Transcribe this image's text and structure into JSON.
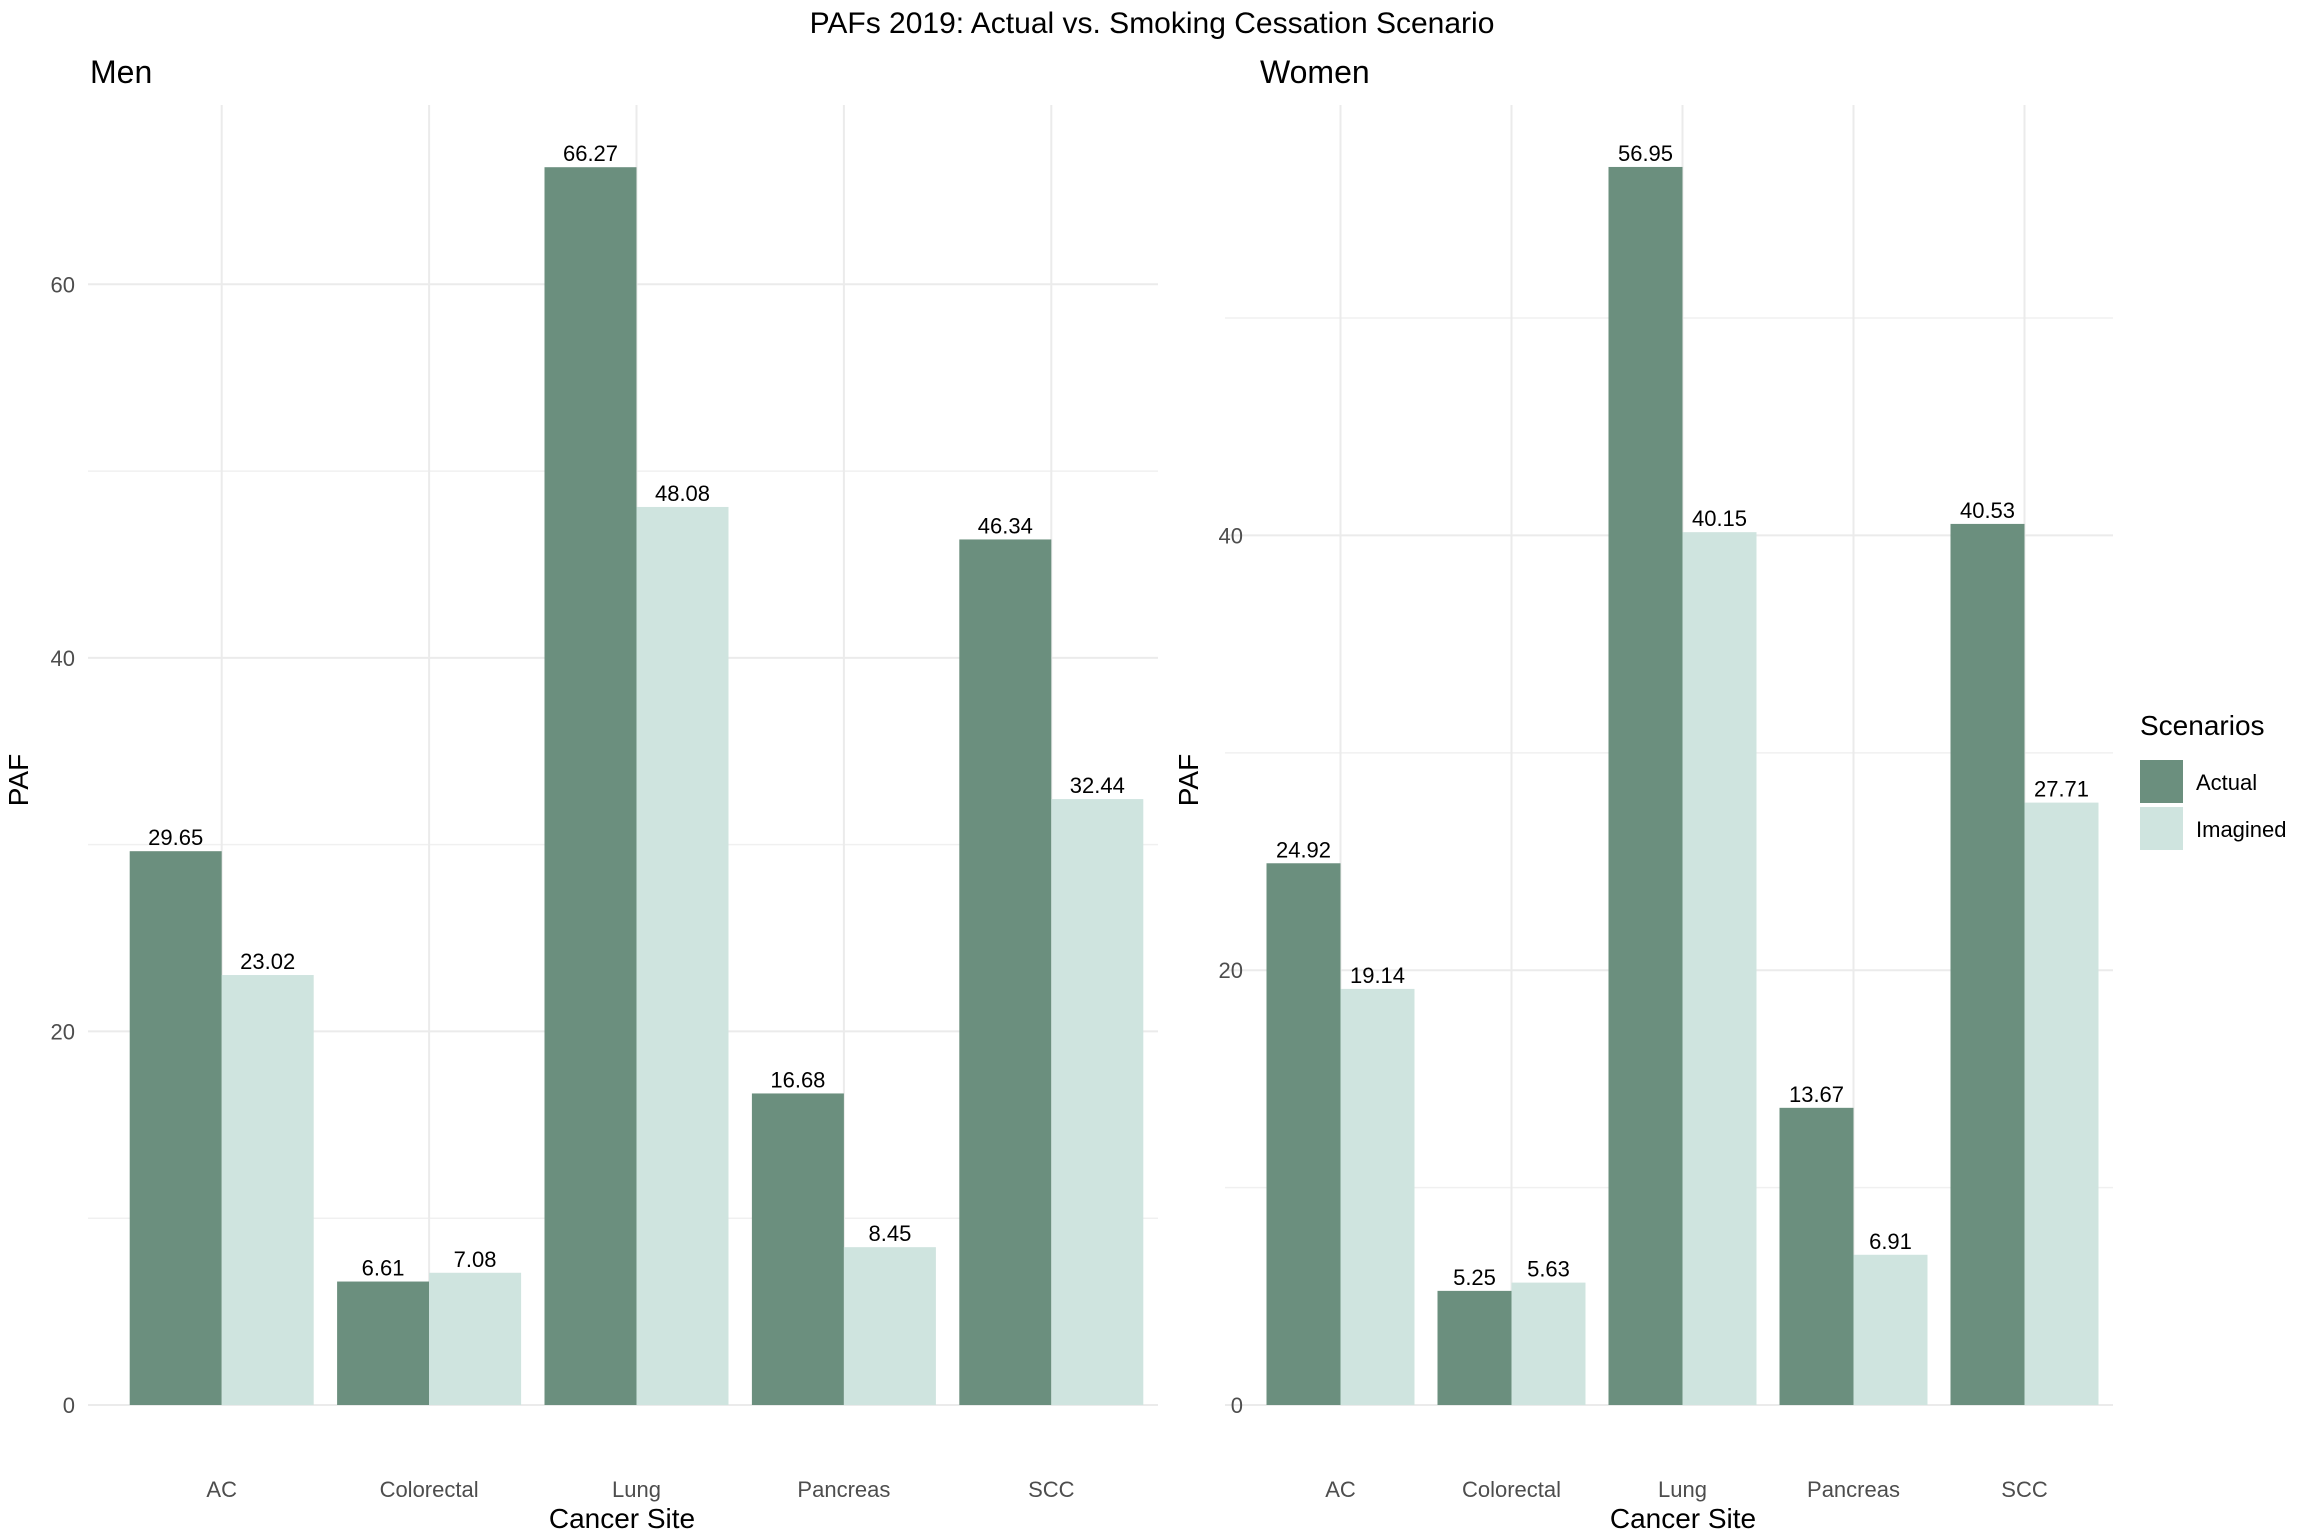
{
  "title": "PAFs 2019: Actual vs. Smoking Cessation Scenario",
  "legend": {
    "title": "Scenarios",
    "position": "right",
    "items": [
      {
        "label": "Actual",
        "color": "#6b8f7e"
      },
      {
        "label": "Imagined",
        "color": "#cfe4df"
      }
    ]
  },
  "chart_data": [
    {
      "type": "bar",
      "title": "Men",
      "xlabel": "Cancer Site",
      "ylabel": "PAF",
      "categories": [
        "AC",
        "Colorectal",
        "Lung",
        "Pancreas",
        "SCC"
      ],
      "ylim": [
        0,
        69.6
      ],
      "yticks": [
        0,
        20,
        40,
        60
      ],
      "grid": true,
      "series": [
        {
          "name": "Actual",
          "values": [
            29.65,
            6.61,
            66.27,
            16.68,
            46.34
          ]
        },
        {
          "name": "Imagined",
          "values": [
            23.02,
            7.08,
            48.08,
            8.45,
            32.44
          ]
        }
      ]
    },
    {
      "type": "bar",
      "title": "Women",
      "xlabel": "Cancer Site",
      "ylabel": "PAF",
      "categories": [
        "AC",
        "Colorectal",
        "Lung",
        "Pancreas",
        "SCC"
      ],
      "ylim": [
        0,
        59.8
      ],
      "yticks": [
        0,
        20,
        40
      ],
      "grid": true,
      "series": [
        {
          "name": "Actual",
          "values": [
            24.92,
            5.25,
            56.95,
            13.67,
            40.53
          ]
        },
        {
          "name": "Imagined",
          "values": [
            19.14,
            5.63,
            40.15,
            6.91,
            27.71
          ]
        }
      ]
    }
  ]
}
